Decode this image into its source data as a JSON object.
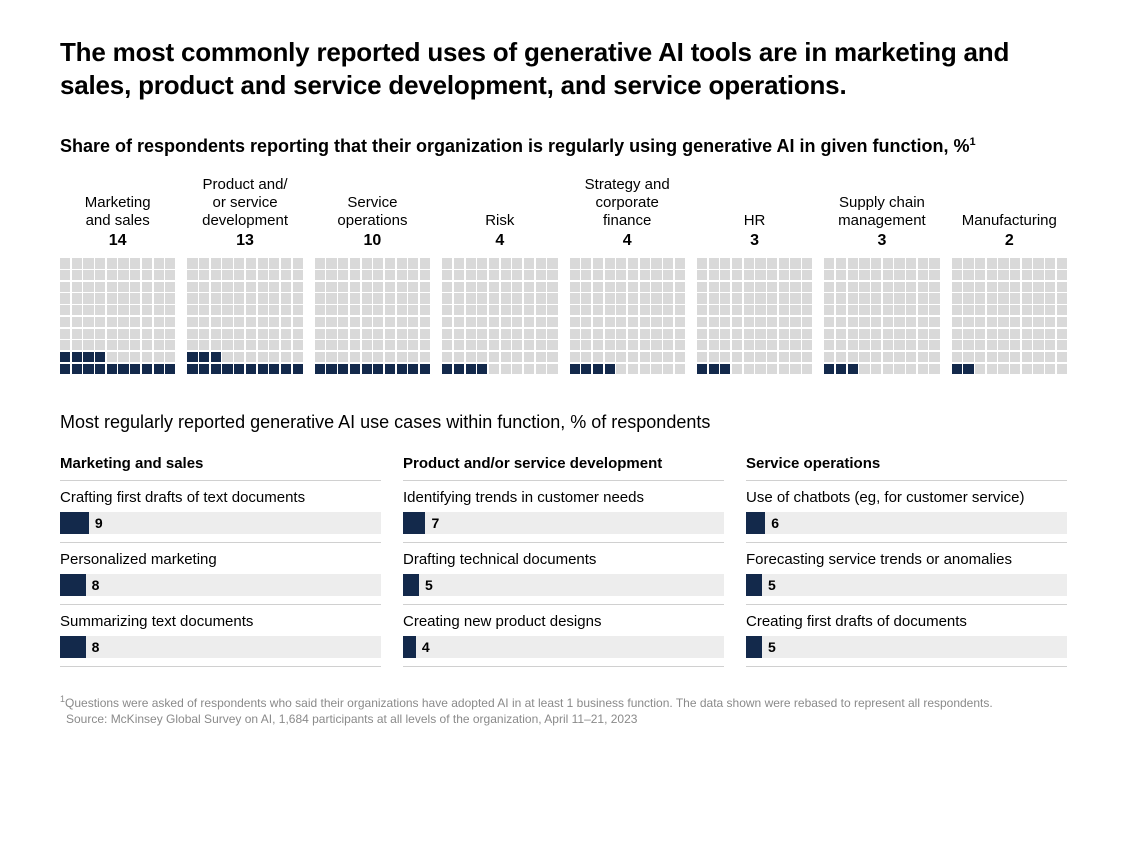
{
  "title": "The most commonly reported uses of generative AI tools are in marketing and sales, product and service development, and service operations.",
  "subtitle_pre": "Share of respondents reporting that their organization is regularly using generative AI in given function, %",
  "subtitle_sup": "1",
  "waffle": {
    "grid_cols": 10,
    "grid_rows": 10,
    "fill_color": "#13294b",
    "empty_color": "#d9d9d9",
    "items": [
      {
        "label": "Marketing\nand sales",
        "value": 14
      },
      {
        "label": "Product and/\nor service\ndevelopment",
        "value": 13
      },
      {
        "label": "Service\noperations",
        "value": 10
      },
      {
        "label": "Risk",
        "value": 4
      },
      {
        "label": "Strategy and\ncorporate\nfinance",
        "value": 4
      },
      {
        "label": "HR",
        "value": 3
      },
      {
        "label": "Supply chain\nmanagement",
        "value": 3
      },
      {
        "label": "Manufacturing",
        "value": 2
      }
    ]
  },
  "section2_title": "Most regularly reported generative AI use cases within function, % of respondents",
  "usecases": {
    "bar_bg": "#ededed",
    "bar_fill": "#13294b",
    "max_scale": 100,
    "columns": [
      {
        "header": "Marketing and sales",
        "items": [
          {
            "label": "Crafting first drafts of text documents",
            "value": 9
          },
          {
            "label": "Personalized marketing",
            "value": 8
          },
          {
            "label": "Summarizing text documents",
            "value": 8
          }
        ]
      },
      {
        "header": "Product and/or service development",
        "items": [
          {
            "label": "Identifying trends in customer needs",
            "value": 7
          },
          {
            "label": "Drafting technical documents",
            "value": 5
          },
          {
            "label": "Creating new product designs",
            "value": 4
          }
        ]
      },
      {
        "header": "Service operations",
        "items": [
          {
            "label": "Use of chatbots (eg, for customer service)",
            "value": 6
          },
          {
            "label": "Forecasting service trends or anomalies",
            "value": 5
          },
          {
            "label": "Creating first drafts of documents",
            "value": 5
          }
        ]
      }
    ]
  },
  "footnote_sup": "1",
  "footnote_line1": "Questions were asked of respondents who said their organizations have adopted AI in at least 1 business function. The data shown were rebased to represent all respondents.",
  "footnote_line2": "Source: McKinsey Global Survey on AI, 1,684 participants at all levels of the organization, April 11–21, 2023"
}
